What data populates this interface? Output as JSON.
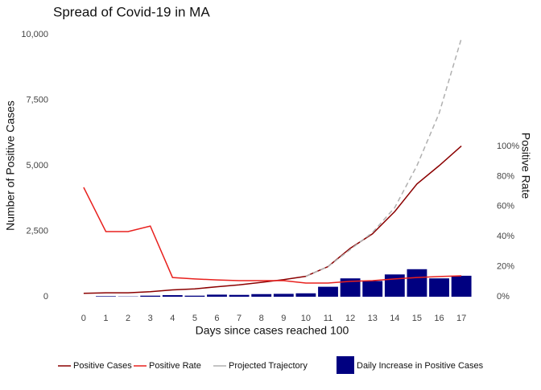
{
  "chart_data": {
    "type": "line",
    "title": "Spread of Covid-19 in MA",
    "x_label": "Days since cases reached 100",
    "y_label": "Number of Positive Cases",
    "y2_label": "Positive Rate",
    "x": [
      0,
      1,
      2,
      3,
      4,
      5,
      6,
      7,
      8,
      9,
      10,
      11,
      12,
      13,
      14,
      15,
      16,
      17
    ],
    "xlim": [
      -0.43,
      17.43
    ],
    "xticks": [
      0,
      1,
      2,
      3,
      4,
      5,
      6,
      7,
      8,
      9,
      10,
      11,
      12,
      13,
      14,
      15,
      16,
      17
    ],
    "ylim": [
      0,
      10000
    ],
    "yticks": [
      0,
      {
        "value": 2500,
        "label": "2,500"
      },
      {
        "value": 5000,
        "label": "5,000"
      },
      {
        "value": 7500,
        "label": "7,500"
      },
      {
        "value": 10000,
        "label": "10,000"
      }
    ],
    "y2lim": [
      0,
      174.3
    ],
    "y2ticks": [
      {
        "value": 0,
        "label": "0%"
      },
      {
        "value": 20,
        "label": "20%"
      },
      {
        "value": 40,
        "label": "40%"
      },
      {
        "value": 60,
        "label": "60%"
      },
      {
        "value": 80,
        "label": "80%"
      },
      {
        "value": 100,
        "label": "100%"
      }
    ],
    "series": [
      {
        "name": "Daily Increase in Positive Cases",
        "kind": "bar",
        "color": "#000080",
        "values": [
          0,
          20,
          10,
          40,
          60,
          40,
          80,
          70,
          100,
          110,
          130,
          380,
          700,
          600,
          850,
          1050,
          700,
          800
        ]
      },
      {
        "name": "Positive Cases",
        "kind": "line",
        "color": "#8b0000",
        "values": [
          130,
          150,
          150,
          190,
          260,
          300,
          380,
          450,
          550,
          650,
          780,
          1150,
          1850,
          2400,
          3250,
          4300,
          5000,
          5750
        ]
      },
      {
        "name": "Positive Rate",
        "kind": "line",
        "color": "#e8211e",
        "axis": "y2",
        "values": [
          72.7,
          43.3,
          43.3,
          47,
          12.8,
          11.8,
          11.2,
          10.7,
          10.7,
          10.7,
          9.1,
          9.1,
          10.2,
          10.7,
          11.8,
          12.8,
          13.4,
          13.9
        ]
      },
      {
        "name": "Projected Trajectory",
        "kind": "line",
        "color": "#b0b0b0",
        "dashed": true,
        "values": [
          null,
          null,
          null,
          null,
          null,
          null,
          null,
          null,
          null,
          null,
          780,
          1150,
          1800,
          2450,
          3400,
          5000,
          7000,
          9850
        ]
      }
    ]
  }
}
